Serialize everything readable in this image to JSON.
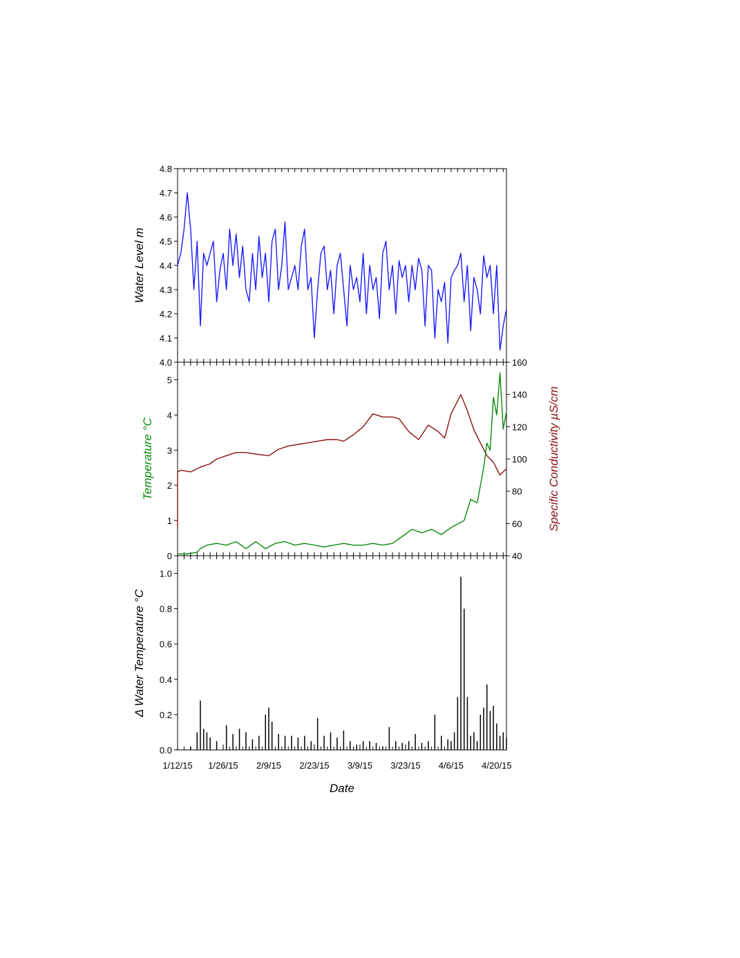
{
  "chart_data": [
    {
      "type": "line",
      "panel": "top",
      "ylabel": "Water Level m",
      "ylim": [
        4.0,
        4.8
      ],
      "yticks": [
        "4.0",
        "4.1",
        "4.2",
        "4.3",
        "4.4",
        "4.5",
        "4.6",
        "4.7",
        "4.8"
      ],
      "series": [
        {
          "color": "#1a1aff",
          "x": [
            "1/12/15",
            "1/13/15",
            "1/14/15",
            "1/15/15",
            "1/16/15",
            "1/17/15",
            "1/18/15",
            "1/19/15",
            "1/20/15",
            "1/21/15",
            "1/22/15",
            "1/23/15",
            "1/24/15",
            "1/25/15",
            "1/26/15",
            "1/27/15",
            "1/28/15",
            "1/29/15",
            "1/30/15",
            "1/31/15",
            "2/1/15",
            "2/2/15",
            "2/3/15",
            "2/4/15",
            "2/5/15",
            "2/6/15",
            "2/7/15",
            "2/8/15",
            "2/9/15",
            "2/10/15",
            "2/11/15",
            "2/12/15",
            "2/13/15",
            "2/14/15",
            "2/15/15",
            "2/16/15",
            "2/17/15",
            "2/18/15",
            "2/19/15",
            "2/20/15",
            "2/21/15",
            "2/22/15",
            "2/23/15",
            "2/24/15",
            "2/25/15",
            "2/26/15",
            "2/27/15",
            "2/28/15",
            "3/1/15",
            "3/2/15",
            "3/3/15",
            "3/4/15",
            "3/5/15",
            "3/6/15",
            "3/7/15",
            "3/8/15",
            "3/9/15",
            "3/10/15",
            "3/11/15",
            "3/12/15",
            "3/13/15",
            "3/14/15",
            "3/15/15",
            "3/16/15",
            "3/17/15",
            "3/18/15",
            "3/19/15",
            "3/20/15",
            "3/21/15",
            "3/22/15",
            "3/23/15",
            "3/24/15",
            "3/25/15",
            "3/26/15",
            "3/27/15",
            "3/28/15",
            "3/29/15",
            "3/30/15",
            "3/31/15",
            "4/1/15",
            "4/2/15",
            "4/3/15",
            "4/4/15",
            "4/5/15",
            "4/6/15",
            "4/7/15",
            "4/8/15",
            "4/9/15",
            "4/10/15",
            "4/11/15",
            "4/12/15",
            "4/13/15",
            "4/14/15",
            "4/15/15",
            "4/16/15",
            "4/17/15",
            "4/18/15",
            "4/19/15",
            "4/20/15",
            "4/21/15",
            "4/22/15",
            "4/23/15"
          ],
          "y": [
            4.4,
            4.45,
            4.55,
            4.7,
            4.55,
            4.3,
            4.5,
            4.15,
            4.45,
            4.4,
            4.45,
            4.5,
            4.25,
            4.38,
            4.45,
            4.3,
            4.55,
            4.4,
            4.53,
            4.35,
            4.48,
            4.3,
            4.25,
            4.45,
            4.3,
            4.52,
            4.35,
            4.45,
            4.25,
            4.5,
            4.55,
            4.3,
            4.4,
            4.58,
            4.3,
            4.35,
            4.4,
            4.3,
            4.48,
            4.55,
            4.3,
            4.35,
            4.1,
            4.3,
            4.45,
            4.48,
            4.3,
            4.38,
            4.2,
            4.4,
            4.45,
            4.3,
            4.15,
            4.4,
            4.3,
            4.35,
            4.25,
            4.45,
            4.2,
            4.4,
            4.3,
            4.35,
            4.18,
            4.45,
            4.5,
            4.3,
            4.4,
            4.2,
            4.42,
            4.35,
            4.4,
            4.25,
            4.4,
            4.3,
            4.43,
            4.38,
            4.15,
            4.4,
            4.38,
            4.1,
            4.3,
            4.25,
            4.33,
            4.08,
            4.35,
            4.38,
            4.4,
            4.45,
            4.25,
            4.4,
            4.13,
            4.35,
            4.3,
            4.2,
            4.44,
            4.35,
            4.4,
            4.2,
            4.4,
            4.05,
            4.15,
            4.22
          ]
        }
      ]
    },
    {
      "type": "line",
      "panel": "middle",
      "ylabel": "Temperature °C",
      "y2label": "Specific Conductivity µS/cm",
      "ylim": [
        0,
        5.5
      ],
      "y2lim": [
        40,
        160
      ],
      "yticks": [
        "0",
        "1",
        "2",
        "3",
        "4",
        "5"
      ],
      "y2ticks": [
        "40",
        "60",
        "80",
        "100",
        "120",
        "140",
        "160"
      ],
      "series": [
        {
          "axis": "left",
          "color": "#0a8a0a",
          "x": [
            "1/12/15",
            "1/15/15",
            "1/18/15",
            "1/19/15",
            "1/21/15",
            "1/24/15",
            "1/27/15",
            "1/30/15",
            "2/2/15",
            "2/5/15",
            "2/8/15",
            "2/11/15",
            "2/14/15",
            "2/17/15",
            "2/20/15",
            "2/23/15",
            "2/26/15",
            "3/1/15",
            "3/4/15",
            "3/7/15",
            "3/10/15",
            "3/13/15",
            "3/16/15",
            "3/19/15",
            "3/22/15",
            "3/25/15",
            "3/28/15",
            "3/31/15",
            "4/3/15",
            "4/6/15",
            "4/8/15",
            "4/10/15",
            "4/12/15",
            "4/14/15",
            "4/15/15",
            "4/16/15",
            "4/17/15",
            "4/18/15",
            "4/19/15",
            "4/20/15",
            "4/21/15",
            "4/22/15",
            "4/23/15"
          ],
          "y": [
            0.05,
            0.05,
            0.1,
            0.2,
            0.3,
            0.35,
            0.3,
            0.4,
            0.2,
            0.4,
            0.2,
            0.35,
            0.4,
            0.3,
            0.35,
            0.3,
            0.25,
            0.3,
            0.35,
            0.3,
            0.3,
            0.35,
            0.3,
            0.35,
            0.55,
            0.75,
            0.65,
            0.75,
            0.6,
            0.8,
            0.9,
            1.0,
            1.6,
            1.5,
            2.0,
            2.5,
            3.2,
            3.0,
            4.5,
            4.0,
            5.2,
            3.6,
            4.1
          ]
        },
        {
          "axis": "right",
          "color": "#8b1010",
          "x": [
            "1/12/15",
            "1/12/15",
            "1/13/15",
            "1/16/15",
            "1/19/15",
            "1/22/15",
            "1/24/15",
            "1/27/15",
            "1/30/15",
            "2/2/15",
            "2/5/15",
            "2/9/15",
            "2/12/15",
            "2/15/15",
            "2/18/15",
            "2/21/15",
            "2/24/15",
            "2/27/15",
            "3/2/15",
            "3/4/15",
            "3/7/15",
            "3/10/15",
            "3/13/15",
            "3/16/15",
            "3/19/15",
            "3/21/15",
            "3/24/15",
            "3/27/15",
            "3/30/15",
            "4/2/15",
            "4/4/15",
            "4/6/15",
            "4/9/15",
            "4/11/15",
            "4/13/15",
            "4/15/15",
            "4/17/15",
            "4/19/15",
            "4/21/15",
            "4/23/15"
          ],
          "y": [
            58,
            92,
            93,
            92,
            95,
            97,
            100,
            102,
            104,
            104,
            103,
            102,
            106,
            108,
            109,
            110,
            111,
            112,
            112,
            111,
            115,
            120,
            128,
            126,
            126,
            125,
            117,
            112,
            121,
            117,
            113,
            128,
            140,
            130,
            118,
            110,
            102,
            98,
            90,
            94
          ]
        }
      ]
    },
    {
      "type": "bar",
      "panel": "bottom",
      "ylabel": "Δ Water Temperature °C",
      "xlabel": "Date",
      "ylim": [
        0,
        1.1
      ],
      "yticks": [
        "0.0",
        "0.2",
        "0.4",
        "0.6",
        "0.8",
        "1.0"
      ],
      "xticks": [
        "1/12/15",
        "1/26/15",
        "2/9/15",
        "2/23/15",
        "3/9/15",
        "3/23/15",
        "4/6/15",
        "4/20/15"
      ],
      "series": [
        {
          "color": "#000000",
          "x": [
            "1/12/15",
            "1/14/15",
            "1/16/15",
            "1/18/15",
            "1/19/15",
            "1/20/15",
            "1/21/15",
            "1/22/15",
            "1/24/15",
            "1/27/15",
            "1/29/15",
            "1/31/15",
            "2/2/15",
            "2/4/15",
            "2/6/15",
            "2/8/15",
            "2/9/15",
            "2/10/15",
            "2/12/15",
            "2/14/15",
            "2/16/15",
            "2/18/15",
            "2/20/15",
            "2/22/15",
            "2/24/15",
            "2/26/15",
            "2/28/15",
            "3/2/15",
            "3/4/15",
            "3/6/15",
            "3/8/15",
            "3/10/15",
            "3/12/15",
            "3/14/15",
            "3/16/15",
            "3/18/15",
            "3/20/15",
            "3/22/15",
            "3/24/15",
            "3/26/15",
            "3/28/15",
            "3/30/15",
            "4/1/15",
            "4/3/15",
            "4/5/15",
            "4/6/15",
            "4/7/15",
            "4/8/15",
            "4/9/15",
            "4/10/15",
            "4/11/15",
            "4/12/15",
            "4/13/15",
            "4/14/15",
            "4/15/15",
            "4/16/15",
            "4/17/15",
            "4/18/15",
            "4/19/15",
            "4/20/15",
            "4/21/15",
            "4/22/15",
            "4/23/15"
          ],
          "y": [
            0.01,
            0.0,
            0.02,
            0.1,
            0.28,
            0.12,
            0.1,
            0.07,
            0.05,
            0.14,
            0.09,
            0.12,
            0.1,
            0.06,
            0.08,
            0.2,
            0.24,
            0.16,
            0.09,
            0.08,
            0.08,
            0.07,
            0.08,
            0.05,
            0.18,
            0.08,
            0.1,
            0.07,
            0.11,
            0.05,
            0.03,
            0.05,
            0.05,
            0.04,
            0.02,
            0.13,
            0.05,
            0.04,
            0.05,
            0.09,
            0.04,
            0.05,
            0.2,
            0.08,
            0.06,
            0.05,
            0.1,
            0.3,
            0.98,
            0.8,
            0.3,
            0.08,
            0.1,
            0.05,
            0.2,
            0.24,
            0.37,
            0.22,
            0.25,
            0.15,
            0.08,
            0.1,
            0.07
          ]
        }
      ]
    }
  ]
}
